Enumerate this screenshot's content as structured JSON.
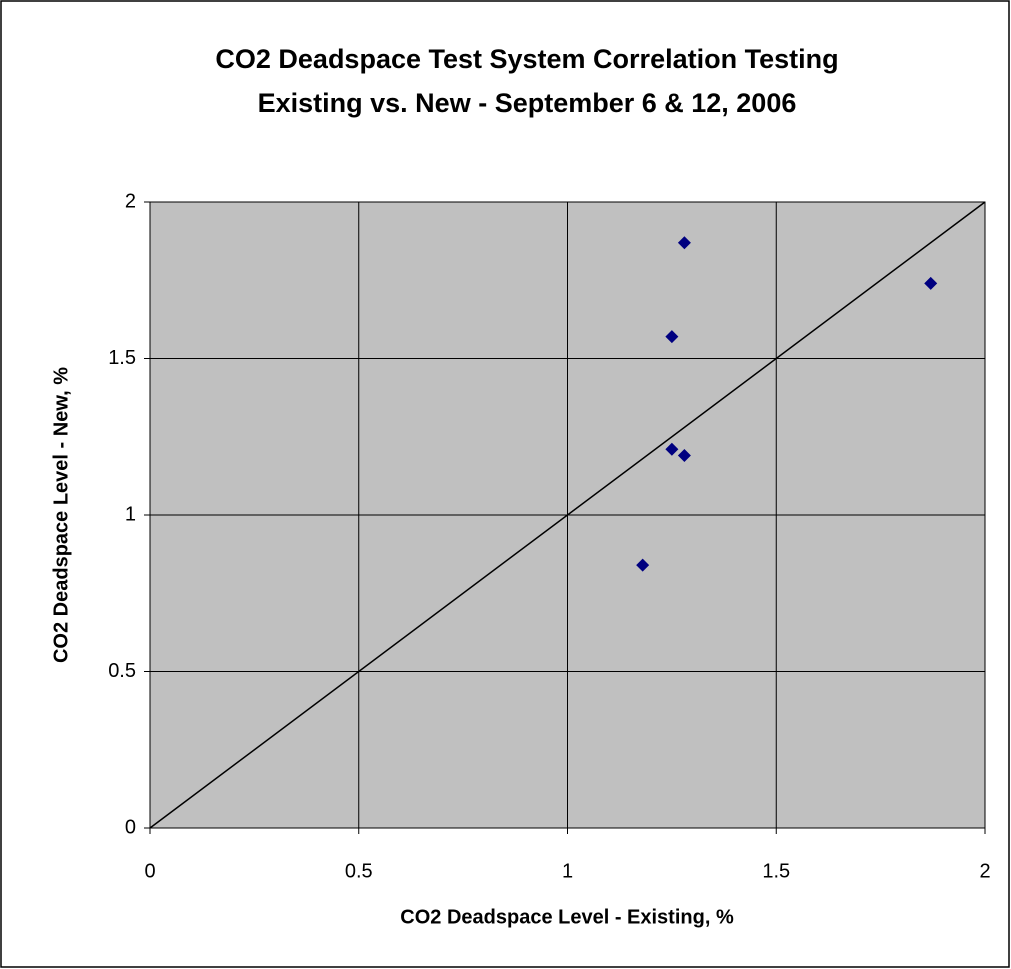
{
  "chart_data": {
    "type": "scatter",
    "title": [
      "CO2 Deadspace Test System Correlation Testing",
      "Existing vs. New - September 6 & 12, 2006"
    ],
    "xlabel": "CO2 Deadspace Level - Existing, %",
    "ylabel": "CO2 Deadspace Level - New, %",
    "xlim": [
      0,
      2
    ],
    "ylim": [
      0,
      2
    ],
    "xticks": [
      0,
      0.5,
      1,
      1.5,
      2
    ],
    "yticks": [
      0,
      0.5,
      1,
      1.5,
      2
    ],
    "grid": true,
    "series": [
      {
        "mode": "markers",
        "color": "#000080",
        "x": [
          1.28,
          1.87,
          1.25,
          1.25,
          1.28,
          1.18
        ],
        "values": [
          1.87,
          1.74,
          1.57,
          1.21,
          1.19,
          0.84
        ]
      },
      {
        "mode": "line",
        "color": "#000000",
        "x": [
          0,
          2
        ],
        "values": [
          0,
          2
        ]
      }
    ]
  }
}
